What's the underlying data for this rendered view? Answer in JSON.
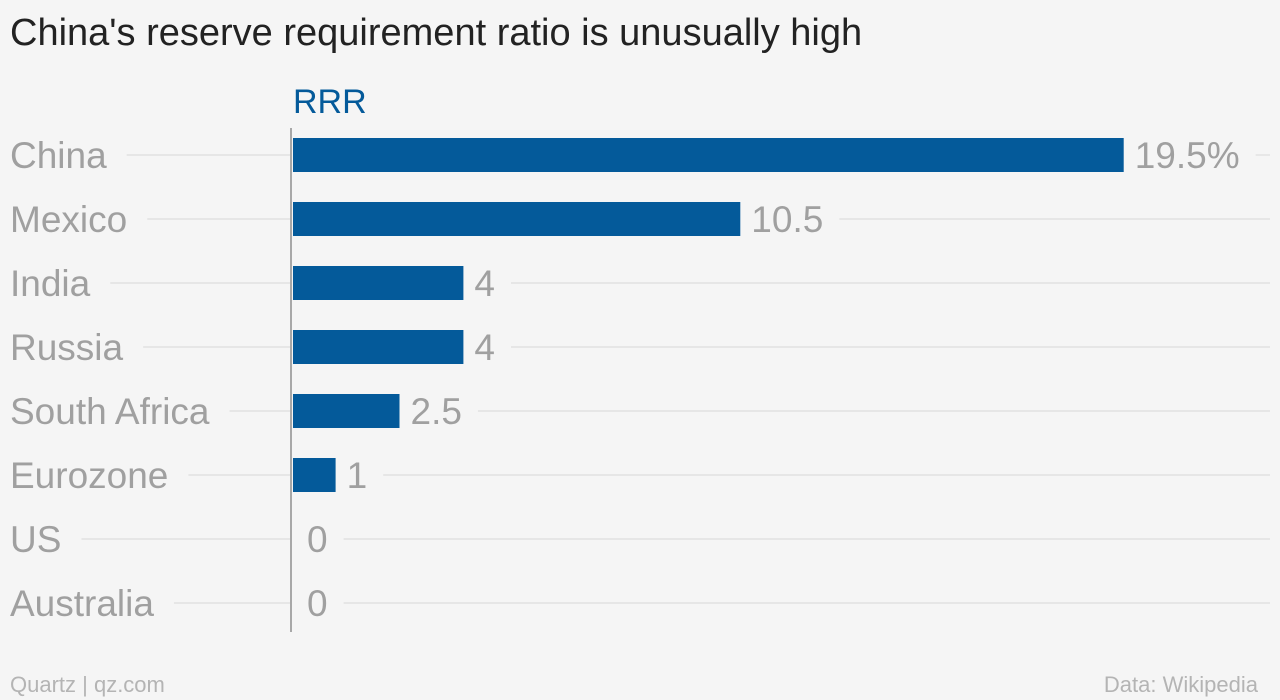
{
  "chart_data": {
    "type": "bar",
    "orientation": "horizontal",
    "title": "China's reserve requirement ratio is unusually high",
    "series": [
      {
        "name": "RRR",
        "color": "#045a9a",
        "values": [
          19.5,
          10.5,
          4,
          4,
          2.5,
          1,
          0,
          0
        ]
      }
    ],
    "categories": [
      "China",
      "Mexico",
      "India",
      "Russia",
      "South Africa",
      "Eurozone",
      "US",
      "Australia"
    ],
    "value_labels": [
      "19.5%",
      "10.5",
      "4",
      "4",
      "2.5",
      "1",
      "0",
      "0"
    ],
    "xlim": [
      0,
      20
    ],
    "grid": true,
    "colors": {
      "label_text": "#a0a0a0",
      "title_text": "#222222",
      "gridline": "#e2e2e2",
      "axis": "#a8a8a8"
    }
  },
  "footer": {
    "credit": "Quartz | qz.com",
    "source": "Data: Wikipedia"
  }
}
